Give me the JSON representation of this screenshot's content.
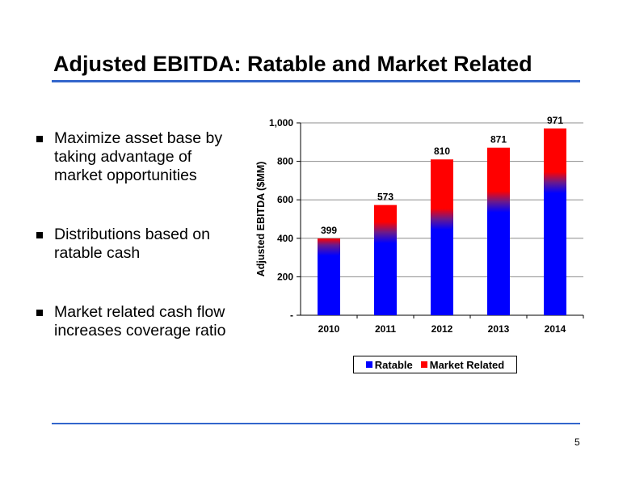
{
  "slide": {
    "title": "Adjusted EBITDA: Ratable and Market Related",
    "page_number": "5"
  },
  "bullets": [
    "Maximize asset base by taking advantage of market opportunities",
    "Distributions based on ratable cash",
    "Market related cash flow increases coverage ratio"
  ],
  "colors": {
    "ratable": "#0000ff",
    "market_related": "#ff0000",
    "rule": "#3366cc"
  },
  "chart_data": {
    "type": "bar",
    "stacked": true,
    "categories": [
      "2010",
      "2011",
      "2012",
      "2013",
      "2014"
    ],
    "series": [
      {
        "name": "Ratable",
        "values": [
          365,
          430,
          500,
          590,
          690
        ]
      },
      {
        "name": "Market Related",
        "values": [
          34,
          143,
          310,
          281,
          281
        ]
      }
    ],
    "totals": [
      399,
      573,
      810,
      871,
      971
    ],
    "total_labels": [
      "399",
      "573",
      "810",
      "871",
      "971"
    ],
    "ylabel": "Adjusted EBITDA ($MM)",
    "xlabel": "",
    "ylim": [
      0,
      1000
    ],
    "yticks": [
      0,
      200,
      400,
      600,
      800,
      1000
    ],
    "ytick_labels": [
      "-",
      "200",
      "400",
      "600",
      "800",
      "1,000"
    ],
    "grid": true,
    "legend_position": "bottom"
  }
}
